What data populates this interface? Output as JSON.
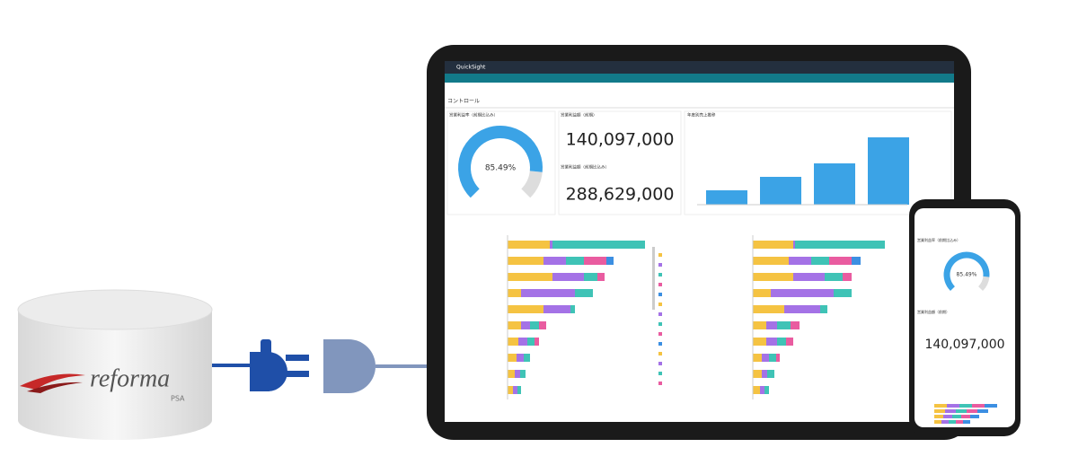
{
  "database": {
    "logo": "reforma",
    "logo_sub": "PSA"
  },
  "dashboard": {
    "app": "QuickSight",
    "control": "コントロール",
    "gauge": {
      "title": "営業利益率（前期比込み）",
      "value": 85.49,
      "value_label": "85.49%"
    },
    "kpi1": {
      "title": "営業利益額（前期）",
      "value": "140,097,000"
    },
    "kpi2": {
      "title": "営業利益額（前期比込み）",
      "value": "288,629,000"
    },
    "column": {
      "title": "年度別売上推移",
      "color": "#3ba3e6",
      "values": [
        16,
        31,
        46,
        75
      ]
    },
    "segment_colors": [
      "#f5c342",
      "#a472e6",
      "#3fc3b6",
      "#e95ca0",
      "#3c8fe2"
    ],
    "stacked_left": {
      "rows": [
        [
          47,
          3,
          103
        ],
        [
          40,
          25,
          20,
          25,
          8
        ],
        [
          50,
          35,
          15,
          8
        ],
        [
          15,
          60,
          20
        ],
        [
          40,
          30,
          5
        ],
        [
          15,
          10,
          10,
          8
        ],
        [
          12,
          10,
          8,
          5
        ],
        [
          10,
          8,
          7
        ],
        [
          8,
          6,
          6
        ],
        [
          6,
          5,
          4
        ]
      ]
    },
    "stacked_right": {
      "rows": [
        [
          45,
          2,
          100
        ],
        [
          40,
          25,
          20,
          25,
          10
        ],
        [
          45,
          35,
          20,
          10
        ],
        [
          20,
          70,
          20
        ],
        [
          35,
          40,
          8
        ],
        [
          15,
          12,
          15,
          10
        ],
        [
          15,
          12,
          10,
          8
        ],
        [
          10,
          8,
          8,
          4
        ],
        [
          10,
          6,
          8
        ],
        [
          8,
          5,
          5
        ]
      ]
    }
  },
  "phone": {
    "gauge": {
      "title": "営業利益率（前期比込み）",
      "value": 85.49,
      "value_label": "85.49%"
    },
    "kpi": {
      "title": "営業利益額（前期）",
      "value": "140,097,000"
    }
  }
}
